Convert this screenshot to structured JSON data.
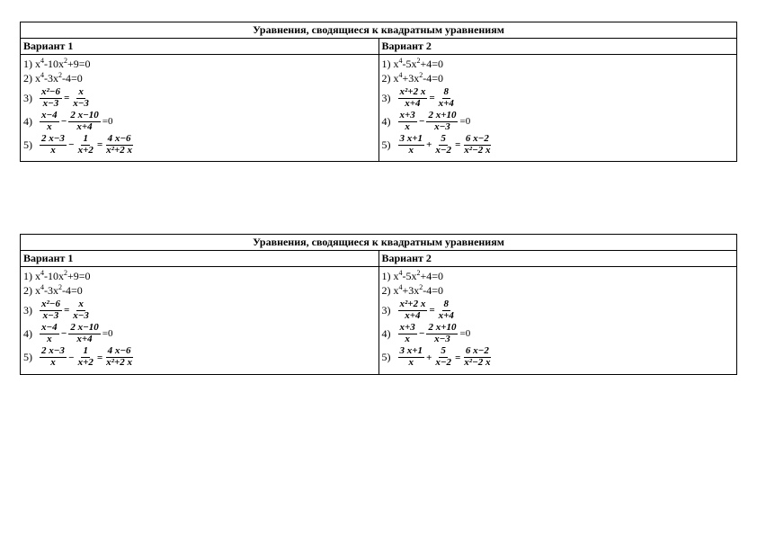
{
  "page": {
    "background_color": "#ffffff",
    "text_color": "#000000",
    "border_color": "#000000",
    "font_family": "Times New Roman",
    "base_fontsize": 12,
    "frac_fontsize": 11
  },
  "tables": [
    {
      "title": "Уравнения, сводящиеся к квадратным уравнениям",
      "columns": [
        {
          "header": "Вариант 1",
          "problems": [
            {
              "num": "1)",
              "type": "poly",
              "text_html": "x<sup>4</sup>-10x<sup>2</sup>+9=0"
            },
            {
              "num": "2)",
              "type": "poly",
              "text_html": "x<sup>4</sup>-3x<sup>2</sup>-4=0"
            },
            {
              "num": "3)",
              "type": "frac2",
              "f1_top": "x²−6",
              "f1_bot": "x−3",
              "op1": "=",
              "f2_top": "x",
              "f2_bot": "x−3"
            },
            {
              "num": "4)",
              "type": "frac2eq0",
              "f1_top": "x−4",
              "f1_bot": "x",
              "op1": "−",
              "f2_top": "2 x−10",
              "f2_bot": "x+4",
              "tail": "=0"
            },
            {
              "num": "5)",
              "type": "frac3",
              "f1_top": "2 x−3",
              "f1_bot": "x",
              "op1": "−",
              "f2_top": "1",
              "f2_bot": "x+2",
              "op2": "=",
              "f3_top": "4 x−6",
              "f3_bot": "x²+2 x"
            }
          ]
        },
        {
          "header": "Вариант 2",
          "problems": [
            {
              "num": "1)",
              "type": "poly",
              "text_html": "x<sup>4</sup>-5x<sup>2</sup>+4=0"
            },
            {
              "num": "2)",
              "type": "poly",
              "text_html": "x<sup>4</sup>+3x<sup>2</sup>-4=0"
            },
            {
              "num": "3)",
              "type": "frac2",
              "f1_top": "x²+2 x",
              "f1_bot": "x+4",
              "op1": "=",
              "f2_top": "8",
              "f2_bot": "x+4"
            },
            {
              "num": "4)",
              "type": "frac2eq0",
              "f1_top": "x+3",
              "f1_bot": "x",
              "op1": "−",
              "f2_top": "2 x+10",
              "f2_bot": "x−3",
              "tail": "=0"
            },
            {
              "num": "5)",
              "type": "frac3",
              "f1_top": "3 x+1",
              "f1_bot": "x",
              "op1": "+",
              "f2_top": "5",
              "f2_bot": "x−2",
              "op2": "=",
              "f3_top": "6 x−2",
              "f3_bot": "x²−2 x"
            }
          ]
        }
      ]
    },
    {
      "title": "Уравнения, сводящиеся к квадратным уравнениям",
      "columns": [
        {
          "header": "Вариант 1",
          "problems": [
            {
              "num": "1)",
              "type": "poly",
              "text_html": "x<sup>4</sup>-10x<sup>2</sup>+9=0"
            },
            {
              "num": "2)",
              "type": "poly",
              "text_html": "x<sup>4</sup>-3x<sup>2</sup>-4=0"
            },
            {
              "num": "3)",
              "type": "frac2",
              "f1_top": "x²−6",
              "f1_bot": "x−3",
              "op1": "=",
              "f2_top": "x",
              "f2_bot": "x−3"
            },
            {
              "num": "4)",
              "type": "frac2eq0",
              "f1_top": "x−4",
              "f1_bot": "x",
              "op1": "−",
              "f2_top": "2 x−10",
              "f2_bot": "x+4",
              "tail": "=0"
            },
            {
              "num": "5)",
              "type": "frac3",
              "f1_top": "2 x−3",
              "f1_bot": "x",
              "op1": "−",
              "f2_top": "1",
              "f2_bot": "x+2",
              "op2": "=",
              "f3_top": "4 x−6",
              "f3_bot": "x²+2 x"
            }
          ]
        },
        {
          "header": "Вариант 2",
          "problems": [
            {
              "num": "1)",
              "type": "poly",
              "text_html": "x<sup>4</sup>-5x<sup>2</sup>+4=0"
            },
            {
              "num": "2)",
              "type": "poly",
              "text_html": "x<sup>4</sup>+3x<sup>2</sup>-4=0"
            },
            {
              "num": "3)",
              "type": "frac2",
              "f1_top": "x²+2 x",
              "f1_bot": "x+4",
              "op1": "=",
              "f2_top": "8",
              "f2_bot": "x+4"
            },
            {
              "num": "4)",
              "type": "frac2eq0",
              "f1_top": "x+3",
              "f1_bot": "x",
              "op1": "−",
              "f2_top": "2 x+10",
              "f2_bot": "x−3",
              "tail": "=0"
            },
            {
              "num": "5)",
              "type": "frac3",
              "f1_top": "3 x+1",
              "f1_bot": "x",
              "op1": "+",
              "f2_top": "5",
              "f2_bot": "x−2",
              "op2": "=",
              "f3_top": "6 x−2",
              "f3_bot": "x²−2 x"
            }
          ]
        }
      ]
    }
  ]
}
